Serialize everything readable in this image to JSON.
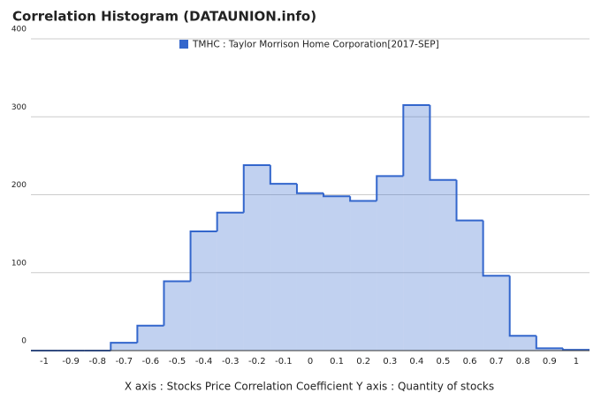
{
  "chart_data": {
    "type": "histogram",
    "title": "Correlation Histogram (DATAUNION.info)",
    "xlabel": "X axis : Stocks Price Correlation Coefficient  Y axis : Quantity of stocks",
    "series": [
      {
        "name": "TMHC : Taylor Morrison Home Corporation[2017-SEP]",
        "color": "#3366cc",
        "bins": [
          -1.05,
          -0.95,
          -0.85,
          -0.75,
          -0.65,
          -0.55,
          -0.45,
          -0.35,
          -0.25,
          -0.15,
          -0.05,
          0.05,
          0.15,
          0.25,
          0.35,
          0.45,
          0.55,
          0.65,
          0.75,
          0.85,
          0.95,
          1.05
        ],
        "values": [
          0,
          0,
          0,
          10,
          32,
          89,
          153,
          177,
          238,
          214,
          202,
          198,
          192,
          224,
          315,
          219,
          167,
          96,
          19,
          3,
          1
        ]
      }
    ],
    "xlim": [
      -1.05,
      1.05
    ],
    "xticks": [
      -1,
      -0.9,
      -0.8,
      -0.7,
      -0.6,
      -0.5,
      -0.4,
      -0.3,
      -0.2,
      -0.1,
      0,
      0.1,
      0.2,
      0.3,
      0.4,
      0.5,
      0.6,
      0.7,
      0.8,
      0.9,
      1
    ],
    "ylim": [
      0,
      400
    ],
    "yticks": [
      0,
      100,
      200,
      300,
      400
    ],
    "grid": true,
    "legend": "top"
  }
}
